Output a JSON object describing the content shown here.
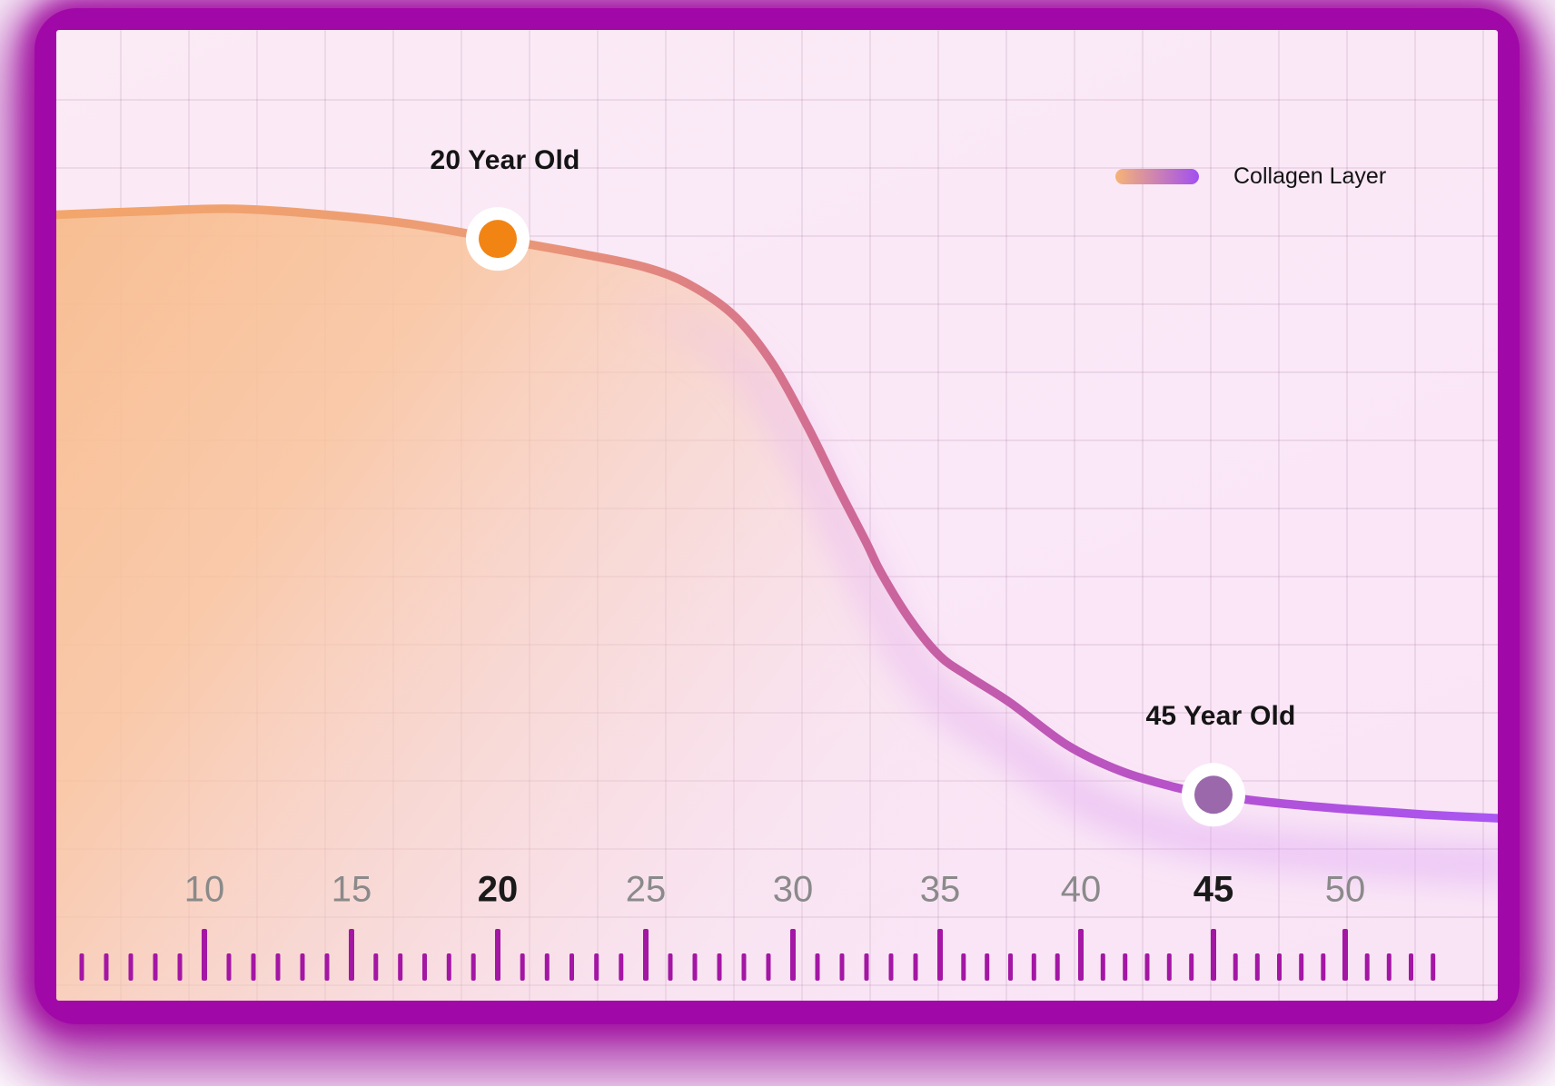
{
  "colors": {
    "frame": "#A108A8",
    "grid": "rgba(120,62,110,0.10)",
    "tick": "#A416A4",
    "axis_label": "#8A8A8A",
    "axis_label_emphasis": "#1A1A1A",
    "annotation_text": "#141414",
    "dot_ring": "#FFFFFF",
    "curve_stops": [
      [
        "0",
        "#F3A66B"
      ],
      [
        "0.30",
        "#EC9B74"
      ],
      [
        "0.42",
        "#E18580"
      ],
      [
        "0.52",
        "#D36F90"
      ],
      [
        "0.62",
        "#C55DA6"
      ],
      [
        "0.72",
        "#BB54BE"
      ],
      [
        "0.82",
        "#B351D4"
      ],
      [
        "0.90",
        "#AE52E3"
      ],
      [
        "1",
        "#A956F3"
      ]
    ],
    "area_stops": [
      [
        "0",
        "#F8BB8C",
        "0.97"
      ],
      [
        "0.30",
        "#F9C49D",
        "0.85"
      ],
      [
        "0.55",
        "#F7CEBC",
        "0.50"
      ],
      [
        "0.78",
        "#F6DDE2",
        "0.18"
      ],
      [
        "1",
        "#F6E2EF",
        "0"
      ]
    ],
    "haze_stops": [
      [
        "0",
        "#EBB9EE",
        "0"
      ],
      [
        "0.38",
        "#EBB9EE",
        "0"
      ],
      [
        "0.50",
        "#EBB9EE",
        "0.40"
      ],
      [
        "0.70",
        "#E5AFF2",
        "0.50"
      ],
      [
        "1",
        "#DFA9F6",
        "0.45"
      ]
    ]
  },
  "legend": {
    "label": "Collagen Layer",
    "gradient_start": "#F6B377",
    "gradient_end": "#A24FF0"
  },
  "chart_data": {
    "type": "area",
    "x_axis": "age_years",
    "ylim": [
      0,
      100
    ],
    "grid": true,
    "legend_position": "top-right",
    "x_ticks": [
      {
        "label": "10",
        "age": 10,
        "emphasized": false
      },
      {
        "label": "15",
        "age": 15,
        "emphasized": false
      },
      {
        "label": "20",
        "age": 20,
        "emphasized": true
      },
      {
        "label": "25",
        "age": 25,
        "emphasized": false
      },
      {
        "label": "30",
        "age": 30,
        "emphasized": false
      },
      {
        "label": "35",
        "age": 35,
        "emphasized": false
      },
      {
        "label": "40",
        "age": 40,
        "emphasized": false
      },
      {
        "label": "45",
        "age": 45,
        "emphasized": true
      },
      {
        "label": "50",
        "age": 50,
        "emphasized": false
      }
    ],
    "series": [
      {
        "name": "Collagen Layer",
        "points": [
          [
            4.6,
            99.2
          ],
          [
            8,
            99.7
          ],
          [
            11,
            100
          ],
          [
            14,
            99.3
          ],
          [
            17,
            98.1
          ],
          [
            20,
            96.2
          ],
          [
            23,
            94.2
          ],
          [
            25,
            92.6
          ],
          [
            26.5,
            90.4
          ],
          [
            28,
            86.5
          ],
          [
            29.3,
            80.5
          ],
          [
            30.5,
            72.5
          ],
          [
            31.5,
            65
          ],
          [
            32.5,
            57.8
          ],
          [
            33,
            54
          ],
          [
            34,
            48
          ],
          [
            35,
            43.5
          ],
          [
            36,
            41
          ],
          [
            37.5,
            37.6
          ],
          [
            39.5,
            32.3
          ],
          [
            41.5,
            29
          ],
          [
            43.5,
            27
          ],
          [
            45,
            26
          ],
          [
            47,
            25.1
          ],
          [
            50,
            24.2
          ],
          [
            53,
            23.5
          ],
          [
            56,
            23
          ]
        ]
      }
    ],
    "markers": [
      {
        "label": "20 Year Old",
        "age": 20,
        "level": 96.2,
        "dot_color": "#F28414"
      },
      {
        "label": "45 Year Old",
        "age": 45,
        "level": 26,
        "dot_color": "#9B68AC"
      }
    ]
  }
}
